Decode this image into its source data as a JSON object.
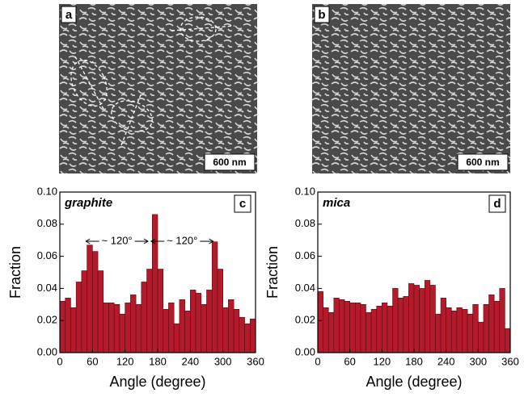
{
  "images": [
    {
      "label": "a",
      "scale": "600 nm"
    },
    {
      "label": "b",
      "scale": "600 nm"
    }
  ],
  "chart_data": [
    {
      "type": "histogram",
      "ylabel": "Fraction",
      "xlabel": "Angle (degree)",
      "annotation": "graphite",
      "panel": "c",
      "notes": [
        "~ 120°",
        "~ 120°"
      ],
      "bins": [
        0,
        10,
        20,
        30,
        40,
        50,
        60,
        70,
        80,
        90,
        100,
        110,
        120,
        130,
        140,
        150,
        160,
        170,
        180,
        190,
        200,
        210,
        220,
        230,
        240,
        250,
        260,
        270,
        280,
        290,
        300,
        310,
        320,
        330,
        340,
        350,
        360
      ],
      "values": [
        0.032,
        0.034,
        0.028,
        0.044,
        0.051,
        0.067,
        0.063,
        0.051,
        0.031,
        0.031,
        0.03,
        0.024,
        0.031,
        0.036,
        0.03,
        0.044,
        0.052,
        0.086,
        0.052,
        0.027,
        0.031,
        0.018,
        0.033,
        0.026,
        0.039,
        0.037,
        0.03,
        0.039,
        0.069,
        0.052,
        0.028,
        0.033,
        0.027,
        0.022,
        0.018,
        0.021
      ],
      "color": "#b31b2c",
      "xlim": [
        0,
        360
      ],
      "xticks": [
        0,
        60,
        120,
        180,
        240,
        300,
        360
      ],
      "ylim": [
        0,
        0.1
      ],
      "yticks": [
        {
          "value": 0,
          "label": "0.00"
        },
        0.02,
        0.04,
        0.06,
        0.08,
        {
          "value": 0.1,
          "label": "0.10"
        }
      ]
    },
    {
      "type": "histogram",
      "ylabel": "Fraction",
      "xlabel": "Angle (degree)",
      "annotation": "mica",
      "panel": "d",
      "bins": [
        0,
        10,
        20,
        30,
        40,
        50,
        60,
        70,
        80,
        90,
        100,
        110,
        120,
        130,
        140,
        150,
        160,
        170,
        180,
        190,
        200,
        210,
        220,
        230,
        240,
        250,
        260,
        270,
        280,
        290,
        300,
        310,
        320,
        330,
        340,
        350,
        360
      ],
      "values": [
        0.038,
        0.028,
        0.025,
        0.034,
        0.033,
        0.032,
        0.031,
        0.031,
        0.03,
        0.025,
        0.027,
        0.029,
        0.031,
        0.029,
        0.04,
        0.034,
        0.035,
        0.043,
        0.042,
        0.04,
        0.045,
        0.042,
        0.024,
        0.034,
        0.028,
        0.026,
        0.028,
        0.027,
        0.024,
        0.03,
        0.019,
        0.03,
        0.036,
        0.032,
        0.04,
        0.015
      ],
      "color": "#b31b2c",
      "xlim": [
        0,
        360
      ],
      "xticks": [
        0,
        60,
        120,
        180,
        240,
        300,
        360
      ],
      "ylim": [
        0,
        0.1
      ],
      "yticks": [
        {
          "value": 0,
          "label": "0.00"
        },
        0.02,
        0.04,
        0.06,
        0.08,
        {
          "value": 0.1,
          "label": "0.10"
        }
      ]
    }
  ]
}
